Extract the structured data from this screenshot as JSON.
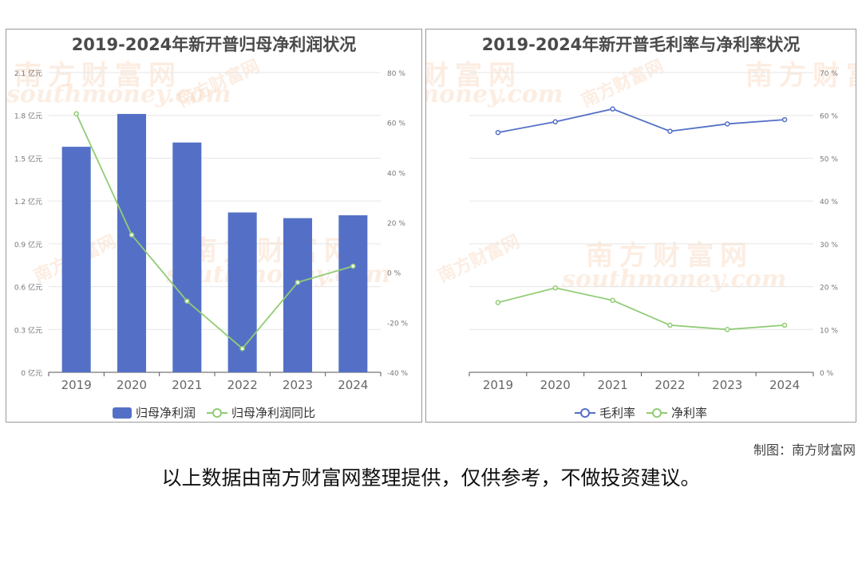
{
  "chart_data": [
    {
      "type": "bar+line",
      "title": "2019-2024年新开普归母净利润状况",
      "categories": [
        "2019",
        "2020",
        "2021",
        "2022",
        "2023",
        "2024"
      ],
      "series": [
        {
          "name": "归母净利润",
          "type": "bar",
          "axis": "left",
          "color": "#5470c6",
          "values": [
            1.58,
            1.81,
            1.61,
            1.12,
            1.08,
            1.1
          ]
        },
        {
          "name": "归母净利润同比",
          "type": "line",
          "axis": "right",
          "color": "#91cc75",
          "values": [
            63.5,
            15.0,
            -11.5,
            -30.5,
            -4.0,
            2.5
          ]
        }
      ],
      "y_left": {
        "ticks": [
          "0 亿元",
          "0.3 亿元",
          "0.6 亿元",
          "0.9 亿元",
          "1.2 亿元",
          "1.5 亿元",
          "1.8 亿元",
          "2.1 亿元"
        ],
        "range": [
          0,
          2.1
        ]
      },
      "y_right": {
        "ticks": [
          "-40 %",
          "-20 %",
          "0 %",
          "20 %",
          "40 %",
          "60 %",
          "80 %"
        ],
        "range": [
          -40,
          80
        ]
      },
      "legend_position": "bottom"
    },
    {
      "type": "line",
      "title": "2019-2024年新开普毛利率与净利率状况",
      "categories": [
        "2019",
        "2020",
        "2021",
        "2022",
        "2023",
        "2024"
      ],
      "series": [
        {
          "name": "毛利率",
          "color": "#5470c6",
          "values": [
            56.0,
            58.5,
            61.5,
            56.3,
            58.0,
            59.0
          ]
        },
        {
          "name": "净利率",
          "color": "#91cc75",
          "values": [
            16.3,
            19.7,
            16.8,
            11.0,
            10.0,
            11.0
          ]
        }
      ],
      "y_right": {
        "ticks": [
          "0 %",
          "10 %",
          "20 %",
          "30 %",
          "40 %",
          "50 %",
          "60 %",
          "70 %"
        ],
        "range": [
          0,
          70
        ]
      },
      "legend_position": "bottom"
    }
  ],
  "watermark": {
    "cn": "南方财富网",
    "url": "southmoney.com"
  },
  "credit": "制图：南方财富网",
  "disclaimer": "以上数据由南方财富网整理提供，仅供参考，不做投资建议。"
}
